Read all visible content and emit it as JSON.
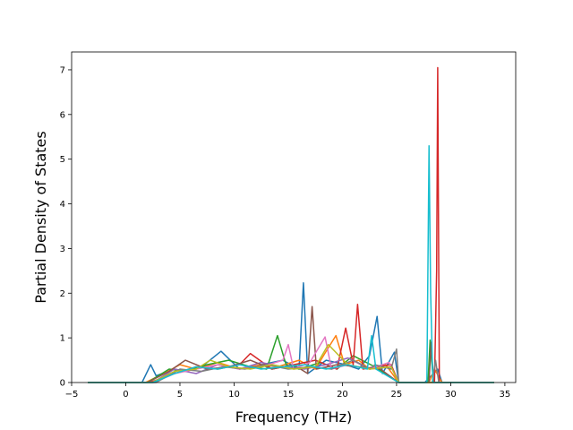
{
  "chart_data": {
    "type": "line",
    "title": "",
    "xlabel": "Frequency (THz)",
    "ylabel": "Partial Density of States",
    "xlim": [
      -5,
      36
    ],
    "ylim": [
      0,
      7.4
    ],
    "xticks": [
      -5,
      0,
      5,
      10,
      15,
      20,
      25,
      30,
      35
    ],
    "yticks": [
      0,
      1,
      2,
      3,
      4,
      5,
      6,
      7
    ],
    "grid": false,
    "legend": "none",
    "colors": [
      "#1f77b4",
      "#ff7f0e",
      "#2ca02c",
      "#d62728",
      "#9467bd",
      "#8c564b",
      "#e377c2",
      "#7f7f7f",
      "#bcbd22",
      "#17becf"
    ],
    "series": [
      {
        "x": [
          -3.5,
          1.5,
          2.3,
          2.8,
          4.5,
          5.5,
          7,
          8.8,
          10.5,
          12.5,
          14.5,
          16.0,
          16.4,
          16.8,
          18.5,
          20.3,
          21.5,
          22.5,
          23.2,
          23.7,
          24.8,
          25.2,
          27.6,
          28.0,
          28.4,
          28.8,
          29.2,
          34
        ],
        "y": [
          0,
          0,
          0.4,
          0.15,
          0.3,
          0.25,
          0.35,
          0.7,
          0.3,
          0.4,
          0.5,
          0.3,
          2.23,
          0.2,
          0.5,
          0.4,
          0.3,
          0.6,
          1.48,
          0.2,
          0.68,
          0,
          0,
          0.1,
          0.2,
          0.3,
          0,
          0
        ]
      },
      {
        "x": [
          -3.5,
          1.8,
          3.5,
          5,
          6.5,
          8.5,
          10.5,
          12.5,
          14,
          16,
          17.5,
          18.5,
          19.4,
          20.2,
          21.5,
          22.5,
          24,
          25.2,
          28,
          28.5,
          29.2,
          34
        ],
        "y": [
          0,
          0,
          0.2,
          0.4,
          0.3,
          0.45,
          0.3,
          0.4,
          0.35,
          0.5,
          0.3,
          0.7,
          1.05,
          0.4,
          0.5,
          0.3,
          0.4,
          0,
          0,
          0.3,
          0,
          0
        ]
      },
      {
        "x": [
          -3.5,
          2.0,
          4,
          5.5,
          7.5,
          9.5,
          11.5,
          13,
          14.0,
          14.8,
          16,
          18,
          19.5,
          21,
          23,
          25.2,
          27.9,
          28.1,
          28.4,
          34
        ],
        "y": [
          0,
          0,
          0.3,
          0.25,
          0.4,
          0.5,
          0.35,
          0.3,
          1.05,
          0.4,
          0.3,
          0.45,
          0.3,
          0.6,
          0.35,
          0,
          0,
          0.95,
          0,
          0
        ]
      },
      {
        "x": [
          -3.5,
          2.2,
          4.5,
          6.5,
          8.5,
          10.5,
          11.5,
          13.5,
          15.5,
          17.5,
          19.5,
          20.3,
          21.0,
          21.4,
          21.9,
          23,
          24.5,
          25.2,
          28.5,
          28.7,
          28.8,
          28.95,
          34
        ],
        "y": [
          0,
          0,
          0.2,
          0.35,
          0.3,
          0.4,
          0.65,
          0.3,
          0.4,
          0.5,
          0.3,
          1.22,
          0.4,
          1.75,
          0.3,
          0.35,
          0.4,
          0,
          0,
          2.5,
          7.05,
          0,
          0
        ]
      },
      {
        "x": [
          -3.5,
          2.5,
          4.5,
          6.5,
          8.5,
          10.5,
          12.5,
          14.5,
          16.5,
          18.5,
          20.5,
          22.5,
          24.5,
          25.2,
          34
        ],
        "y": [
          0,
          0,
          0.3,
          0.2,
          0.4,
          0.3,
          0.45,
          0.35,
          0.3,
          0.4,
          0.55,
          0.3,
          0.35,
          0,
          0
        ]
      },
      {
        "x": [
          -3.5,
          2.0,
          4,
          5.5,
          7.5,
          9.5,
          11.5,
          13.5,
          15.5,
          16.8,
          17.2,
          17.6,
          19.5,
          21.5,
          23.5,
          25.2,
          28.0,
          28.2,
          28.4,
          34
        ],
        "y": [
          0,
          0,
          0.25,
          0.5,
          0.3,
          0.35,
          0.5,
          0.3,
          0.4,
          0.2,
          1.7,
          0.3,
          0.4,
          0.35,
          0.3,
          0,
          0,
          0.9,
          0,
          0
        ]
      },
      {
        "x": [
          -3.5,
          2.6,
          4.5,
          6.5,
          8.5,
          10.5,
          12.5,
          14.5,
          15.0,
          15.5,
          17,
          18.4,
          19.0,
          20.5,
          22.5,
          24.3,
          25.2,
          34
        ],
        "y": [
          0,
          0,
          0.2,
          0.3,
          0.4,
          0.3,
          0.35,
          0.5,
          0.85,
          0.3,
          0.45,
          1.02,
          0.3,
          0.4,
          0.3,
          0.45,
          0,
          0
        ]
      },
      {
        "x": [
          -3.5,
          2.8,
          5,
          7,
          9,
          11,
          13,
          15,
          17,
          19,
          21,
          22.6,
          23,
          24.5,
          25.0,
          25.2,
          28.3,
          28.6,
          28.9,
          34
        ],
        "y": [
          0,
          0,
          0.3,
          0.25,
          0.35,
          0.3,
          0.4,
          0.3,
          0.35,
          0.3,
          0.5,
          0.3,
          0.4,
          0.3,
          0.75,
          0,
          0,
          0.5,
          0,
          0
        ]
      },
      {
        "x": [
          -3.5,
          2.4,
          4.5,
          6.5,
          7.8,
          9.5,
          11.5,
          13.5,
          15.5,
          17.5,
          18.7,
          20.5,
          22.5,
          24.5,
          25.2,
          34
        ],
        "y": [
          0,
          0,
          0.25,
          0.3,
          0.5,
          0.35,
          0.3,
          0.4,
          0.3,
          0.35,
          0.85,
          0.4,
          0.3,
          0.35,
          0,
          0
        ]
      },
      {
        "x": [
          -3.5,
          2.5,
          4.5,
          6.5,
          8.5,
          10.5,
          12.5,
          14.5,
          16.5,
          18.5,
          20.5,
          22.3,
          22.7,
          23.1,
          25.2,
          27.8,
          28.0,
          28.15,
          28.35,
          34
        ],
        "y": [
          0,
          0,
          0.2,
          0.35,
          0.3,
          0.4,
          0.3,
          0.35,
          0.4,
          0.3,
          0.4,
          0.3,
          1.05,
          0.3,
          0,
          0,
          5.3,
          2.0,
          0,
          0
        ]
      }
    ]
  }
}
